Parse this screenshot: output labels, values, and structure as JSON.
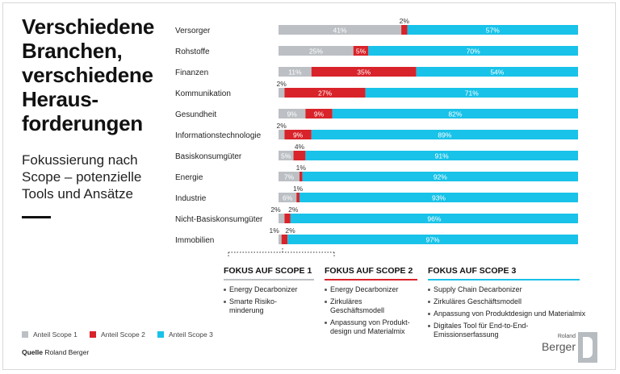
{
  "title_lines": [
    "Verschiedene",
    "Branchen,",
    "verschiedene",
    "Heraus-",
    "forderungen"
  ],
  "subtitle_lines": [
    "Fokussierung nach",
    "Scope – potenzielle",
    "Tools und Ansätze"
  ],
  "colors": {
    "scope1": "#bcc0c4",
    "scope2": "#d8232a",
    "scope3": "#18c2e8"
  },
  "chart_data": {
    "type": "bar",
    "orientation": "horizontal",
    "stacked": true,
    "categories": [
      "Versorger",
      "Rohstoffe",
      "Finanzen",
      "Kommunikation",
      "Gesundheit",
      "Informationstechnologie",
      "Basiskonsumgüter",
      "Energie",
      "Industrie",
      "Nicht-Basiskonsumgüter",
      "Immobilien"
    ],
    "series": [
      {
        "name": "Anteil Scope 1",
        "values": [
          41,
          25,
          11,
          2,
          9,
          2,
          5,
          7,
          6,
          2,
          1
        ]
      },
      {
        "name": "Anteil Scope 2",
        "values": [
          2,
          5,
          35,
          27,
          9,
          9,
          4,
          1,
          1,
          2,
          2
        ]
      },
      {
        "name": "Anteil Scope 3",
        "values": [
          57,
          70,
          54,
          71,
          82,
          89,
          91,
          92,
          93,
          96,
          97
        ]
      }
    ],
    "xlim": [
      0,
      100
    ],
    "legend": "bottom-left"
  },
  "focus": [
    {
      "heading": "FOKUS AUF SCOPE 1",
      "items": [
        "Energy Decarbonizer",
        "Smarte Risiko-\nminderung"
      ]
    },
    {
      "heading": "FOKUS AUF SCOPE 2",
      "items": [
        "Energy Decarbonizer",
        "Zirkuläres\nGeschäftsmodell",
        "Anpassung von Produkt-\ndesign und Materialmix"
      ]
    },
    {
      "heading": "FOKUS AUF SCOPE 3",
      "items": [
        "Supply Chain Decarbonizer",
        "Zirkuläres Geschäftsmodell",
        "Anpassung von Produktdesign und Materialmix",
        "Digitales Tool für End-to-End-\nEmissionserfassung"
      ]
    }
  ],
  "legend": [
    "Anteil Scope 1",
    "Anteil Scope 2",
    "Anteil Scope 3"
  ],
  "source": {
    "label": "Quelle",
    "text": "Roland Berger"
  },
  "logo": {
    "small": "Roland",
    "big": "Berger"
  }
}
